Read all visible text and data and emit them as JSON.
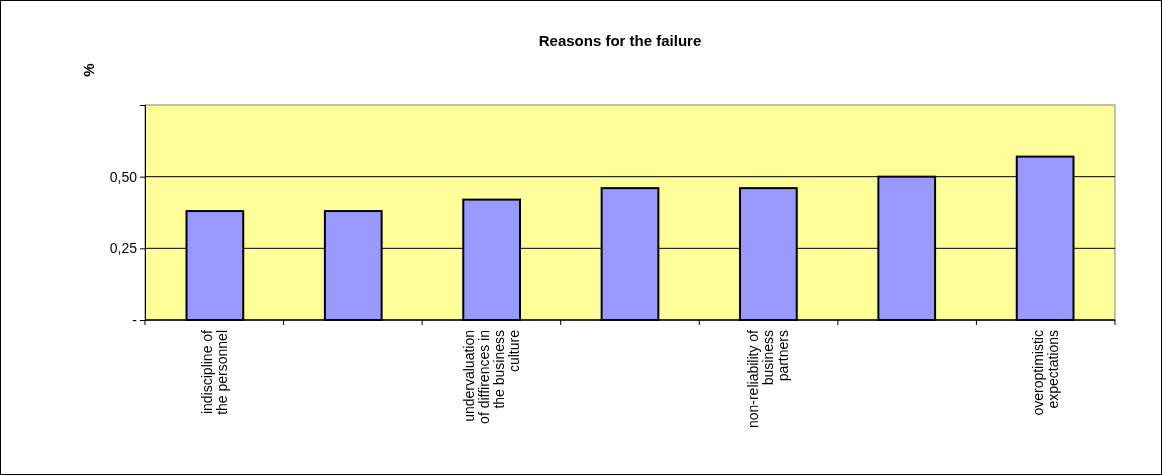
{
  "chart_data": {
    "type": "bar",
    "title": "Reasons for the failure",
    "ylabel": "%",
    "categories": [
      "indiscipline of the personnel",
      null,
      "undervaluation of diffirences in the business culture",
      null,
      "non-reliability of business partners",
      null,
      "overoptimistic expectations"
    ],
    "values": [
      0.38,
      0.38,
      0.42,
      0.46,
      0.46,
      0.5,
      0.57
    ],
    "color": "#9999ff",
    "ylim": [
      0,
      0.75
    ],
    "yticks": [
      {
        "value": 0,
        "label": "-"
      },
      {
        "value": 0.25,
        "label": "0,25"
      },
      {
        "value": 0.5,
        "label": "0,50"
      }
    ],
    "grid": "y"
  }
}
